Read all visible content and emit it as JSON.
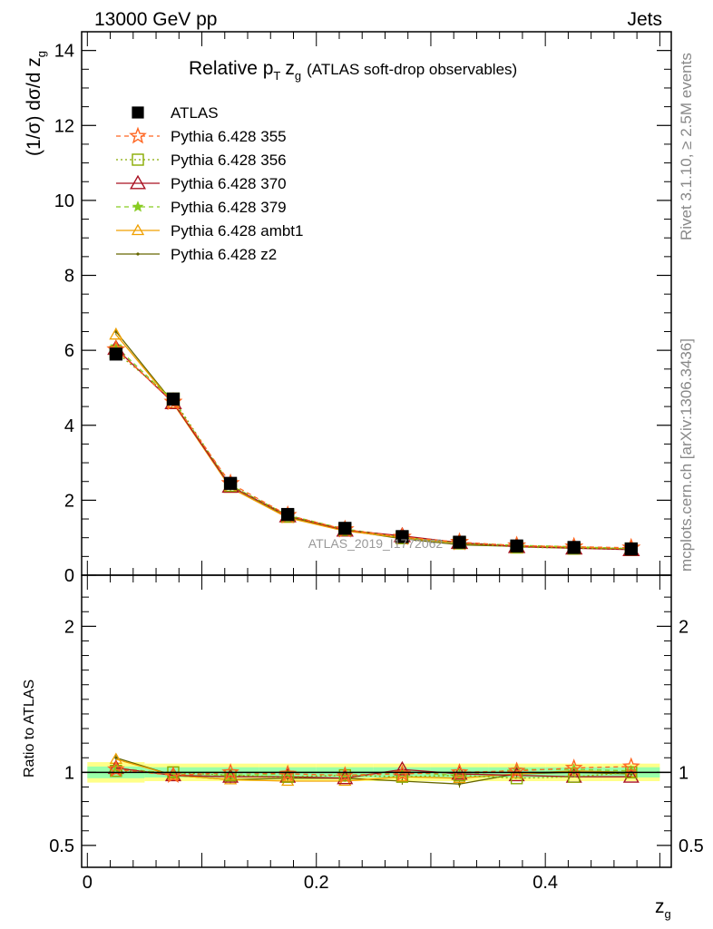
{
  "header": {
    "left": "13000 GeV pp",
    "right": "Jets"
  },
  "side_text": {
    "rivet": "Rivet 3.1.10, ≥ 2.5M events",
    "mcplots": "mcplots.cern.ch [arXiv:1306.3436]"
  },
  "watermark": "ATLAS_2019_I1772062",
  "colors": {
    "data": "#000000",
    "p355": "#ff6622",
    "p356": "#88aa00",
    "p370": "#aa1122",
    "p379": "#88cc22",
    "ambt1": "#f0a000",
    "z2": "#666600",
    "band_inner": "#99ffaa",
    "band_outer": "#ffff88"
  },
  "chart_data": [
    {
      "type": "line",
      "panel": "main",
      "title_main": "Relative p",
      "title_sub_T": "T",
      "title_z": "z",
      "title_sub_g": "g",
      "title_rest": "(ATLAS soft-drop observables)",
      "ylabel": "(1/σ) dσ/d z",
      "ylabel_sub": "g",
      "ylim": [
        0,
        14.5
      ],
      "xlim": [
        -0.005,
        0.51
      ],
      "yticks": [
        "0",
        "2",
        "4",
        "6",
        "8",
        "10",
        "12",
        "14"
      ],
      "x": [
        0.025,
        0.075,
        0.125,
        0.175,
        0.225,
        0.275,
        0.325,
        0.375,
        0.425,
        0.475
      ],
      "series": [
        {
          "key": "data",
          "name": "ATLAS",
          "values": [
            5.9,
            4.7,
            2.45,
            1.62,
            1.25,
            1.03,
            0.88,
            0.78,
            0.74,
            0.7
          ]
        },
        {
          "key": "p355",
          "name": "Pythia 6.428 355",
          "values": [
            6.02,
            4.62,
            2.45,
            1.6,
            1.22,
            1.02,
            0.88,
            0.79,
            0.76,
            0.73
          ]
        },
        {
          "key": "p356",
          "name": "Pythia 6.428 356",
          "values": [
            5.95,
            4.7,
            2.4,
            1.58,
            1.22,
            1.0,
            0.86,
            0.75,
            0.72,
            0.7
          ]
        },
        {
          "key": "p370",
          "name": "Pythia 6.428 370",
          "values": [
            6.05,
            4.6,
            2.37,
            1.58,
            1.2,
            1.05,
            0.87,
            0.76,
            0.72,
            0.68
          ]
        },
        {
          "key": "p379",
          "name": "Pythia 6.428 379",
          "values": [
            6.1,
            4.65,
            2.4,
            1.6,
            1.23,
            1.03,
            0.86,
            0.8,
            0.76,
            0.71
          ]
        },
        {
          "key": "ambt1",
          "name": "Pythia 6.428 ambt1",
          "values": [
            6.42,
            4.58,
            2.33,
            1.53,
            1.18,
            1.0,
            0.85,
            0.77,
            0.75,
            0.7
          ]
        },
        {
          "key": "z2",
          "name": "Pythia 6.428 z2",
          "values": [
            6.5,
            4.6,
            2.33,
            1.55,
            1.2,
            0.97,
            0.81,
            0.77,
            0.74,
            0.69
          ]
        }
      ]
    },
    {
      "type": "line",
      "panel": "ratio",
      "ylabel": "Ratio to ATLAS",
      "xlabel": "z",
      "xlabel_sub": "g",
      "ylim": [
        0.35,
        2.35
      ],
      "yticks": [
        "0.5",
        "1",
        "2"
      ],
      "xticks": [
        "0",
        "0.2",
        "0.4"
      ],
      "x": [
        0.025,
        0.075,
        0.125,
        0.175,
        0.225,
        0.275,
        0.325,
        0.375,
        0.425,
        0.475
      ],
      "band_inner_halfwidth": [
        0.04,
        0.035,
        0.035,
        0.035,
        0.035,
        0.035,
        0.035,
        0.035,
        0.035,
        0.035
      ],
      "band_outer_halfwidth": [
        0.07,
        0.06,
        0.06,
        0.06,
        0.06,
        0.06,
        0.06,
        0.06,
        0.06,
        0.06
      ],
      "series": [
        {
          "key": "data",
          "name": "ATLAS",
          "values": [
            1,
            1,
            1,
            1,
            1,
            1,
            1,
            1,
            1,
            1
          ]
        },
        {
          "key": "p355",
          "name": "Pythia 6.428 355",
          "values": [
            1.02,
            0.98,
            1.0,
            0.99,
            0.98,
            0.99,
            1.0,
            1.01,
            1.03,
            1.04
          ]
        },
        {
          "key": "p356",
          "name": "Pythia 6.428 356",
          "values": [
            1.01,
            1.0,
            0.98,
            0.97,
            0.98,
            0.97,
            0.98,
            0.96,
            0.97,
            1.0
          ]
        },
        {
          "key": "p370",
          "name": "Pythia 6.428 370",
          "values": [
            1.03,
            0.98,
            0.97,
            0.97,
            0.96,
            1.02,
            0.99,
            0.98,
            0.97,
            0.97
          ]
        },
        {
          "key": "p379",
          "name": "Pythia 6.428 379",
          "values": [
            1.03,
            0.99,
            0.98,
            0.99,
            0.98,
            1.0,
            0.98,
            1.02,
            1.02,
            1.01
          ]
        },
        {
          "key": "ambt1",
          "name": "Pythia 6.428 ambt1",
          "values": [
            1.09,
            0.98,
            0.95,
            0.94,
            0.94,
            0.97,
            0.96,
            0.99,
            1.01,
            1.0
          ]
        },
        {
          "key": "z2",
          "name": "Pythia 6.428 z2",
          "values": [
            1.1,
            0.98,
            0.95,
            0.96,
            0.96,
            0.94,
            0.92,
            0.99,
            1.0,
            0.99
          ]
        }
      ]
    }
  ]
}
